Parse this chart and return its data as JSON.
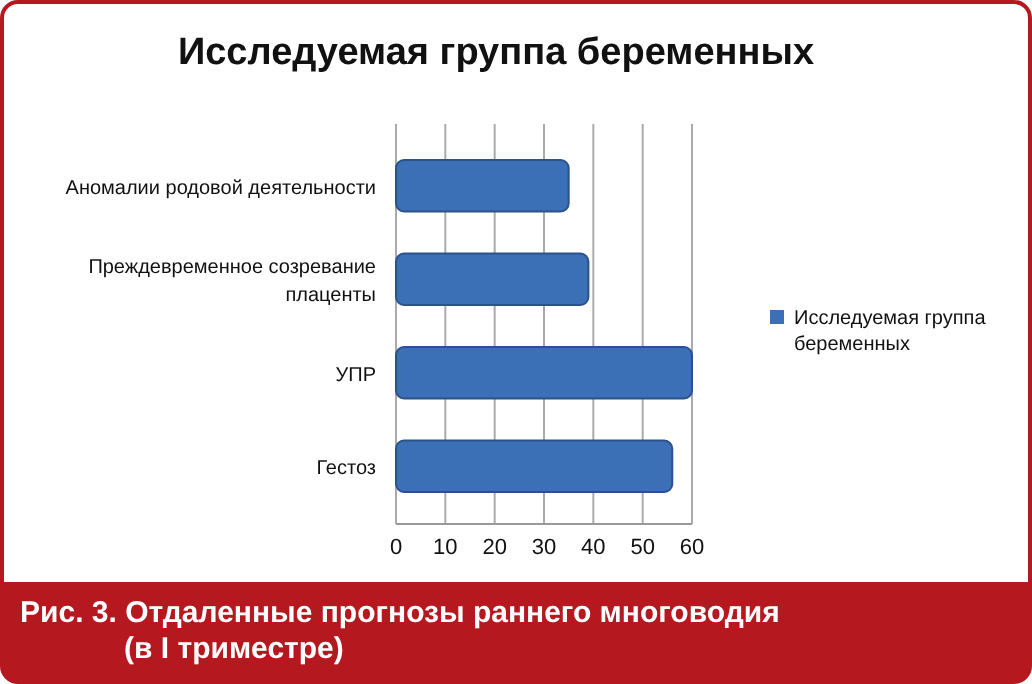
{
  "chart_data": {
    "type": "bar",
    "orientation": "horizontal",
    "title": "Исследуемая группа беременных",
    "categories": [
      "Аномалии родовой деятельности",
      "Преждевременное созревание плаценты",
      "УПР",
      "Гестоз"
    ],
    "series": [
      {
        "name": "Исследуемая группа беременных",
        "color": "#3b6fb6",
        "values": [
          35,
          39,
          60,
          56
        ]
      }
    ],
    "xlim": [
      0,
      60
    ],
    "xticks": [
      0,
      10,
      20,
      30,
      40,
      50,
      60
    ],
    "grid": "x",
    "legend": "right",
    "annotations": [
      "Рис. 3. Отдаленные прогнозы раннего многоводия (в I триместре)"
    ]
  }
}
